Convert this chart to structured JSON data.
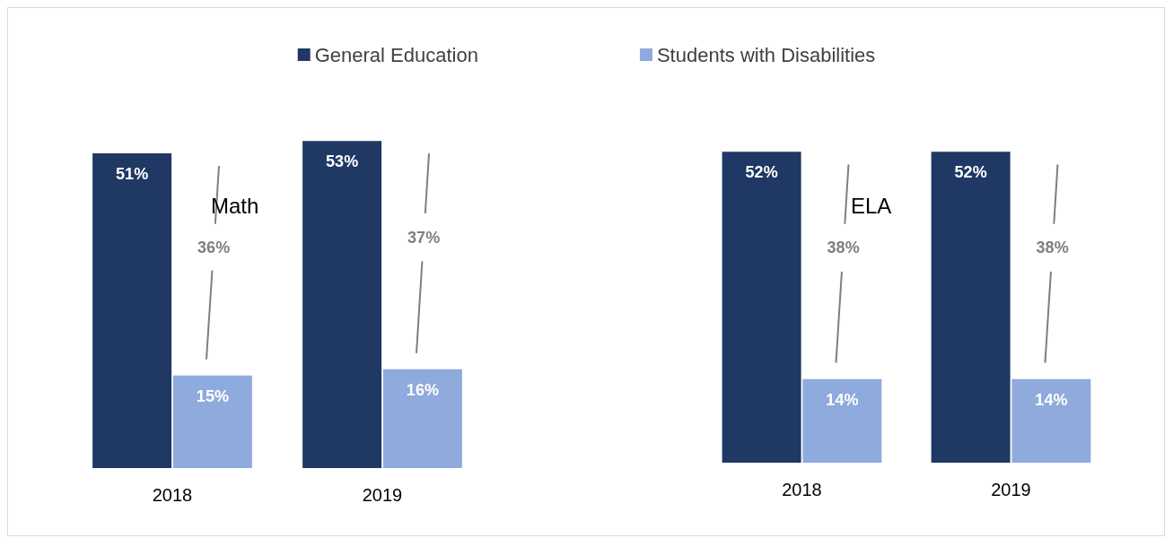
{
  "chart_data": [
    {
      "type": "bar",
      "title": "Math",
      "categories": [
        "2018",
        "2019"
      ],
      "series": [
        {
          "name": "General Education",
          "color": "#1f3864",
          "values": [
            51,
            53
          ],
          "value_labels": [
            "51%",
            "53%"
          ]
        },
        {
          "name": "Students with Disabilities",
          "color": "#8faadc",
          "values": [
            15,
            16
          ],
          "value_labels": [
            "15%",
            "16%"
          ]
        }
      ],
      "legend": "top",
      "annotations": [
        {
          "text": "36%",
          "x": "2018"
        },
        {
          "text": "37%",
          "x": "2019"
        }
      ]
    },
    {
      "type": "bar",
      "title": "ELA",
      "categories": [
        "2018",
        "2019"
      ],
      "series": [
        {
          "color": "#1f3864",
          "values": [
            52,
            52
          ],
          "value_labels": [
            "52%",
            "52%"
          ]
        },
        {
          "color": "#8faadc",
          "values": [
            14,
            14
          ],
          "value_labels": [
            "14%",
            "14%"
          ]
        }
      ],
      "annotations": [
        {
          "text": "38%",
          "x": "2018"
        },
        {
          "text": "38%",
          "x": "2019"
        }
      ]
    }
  ]
}
